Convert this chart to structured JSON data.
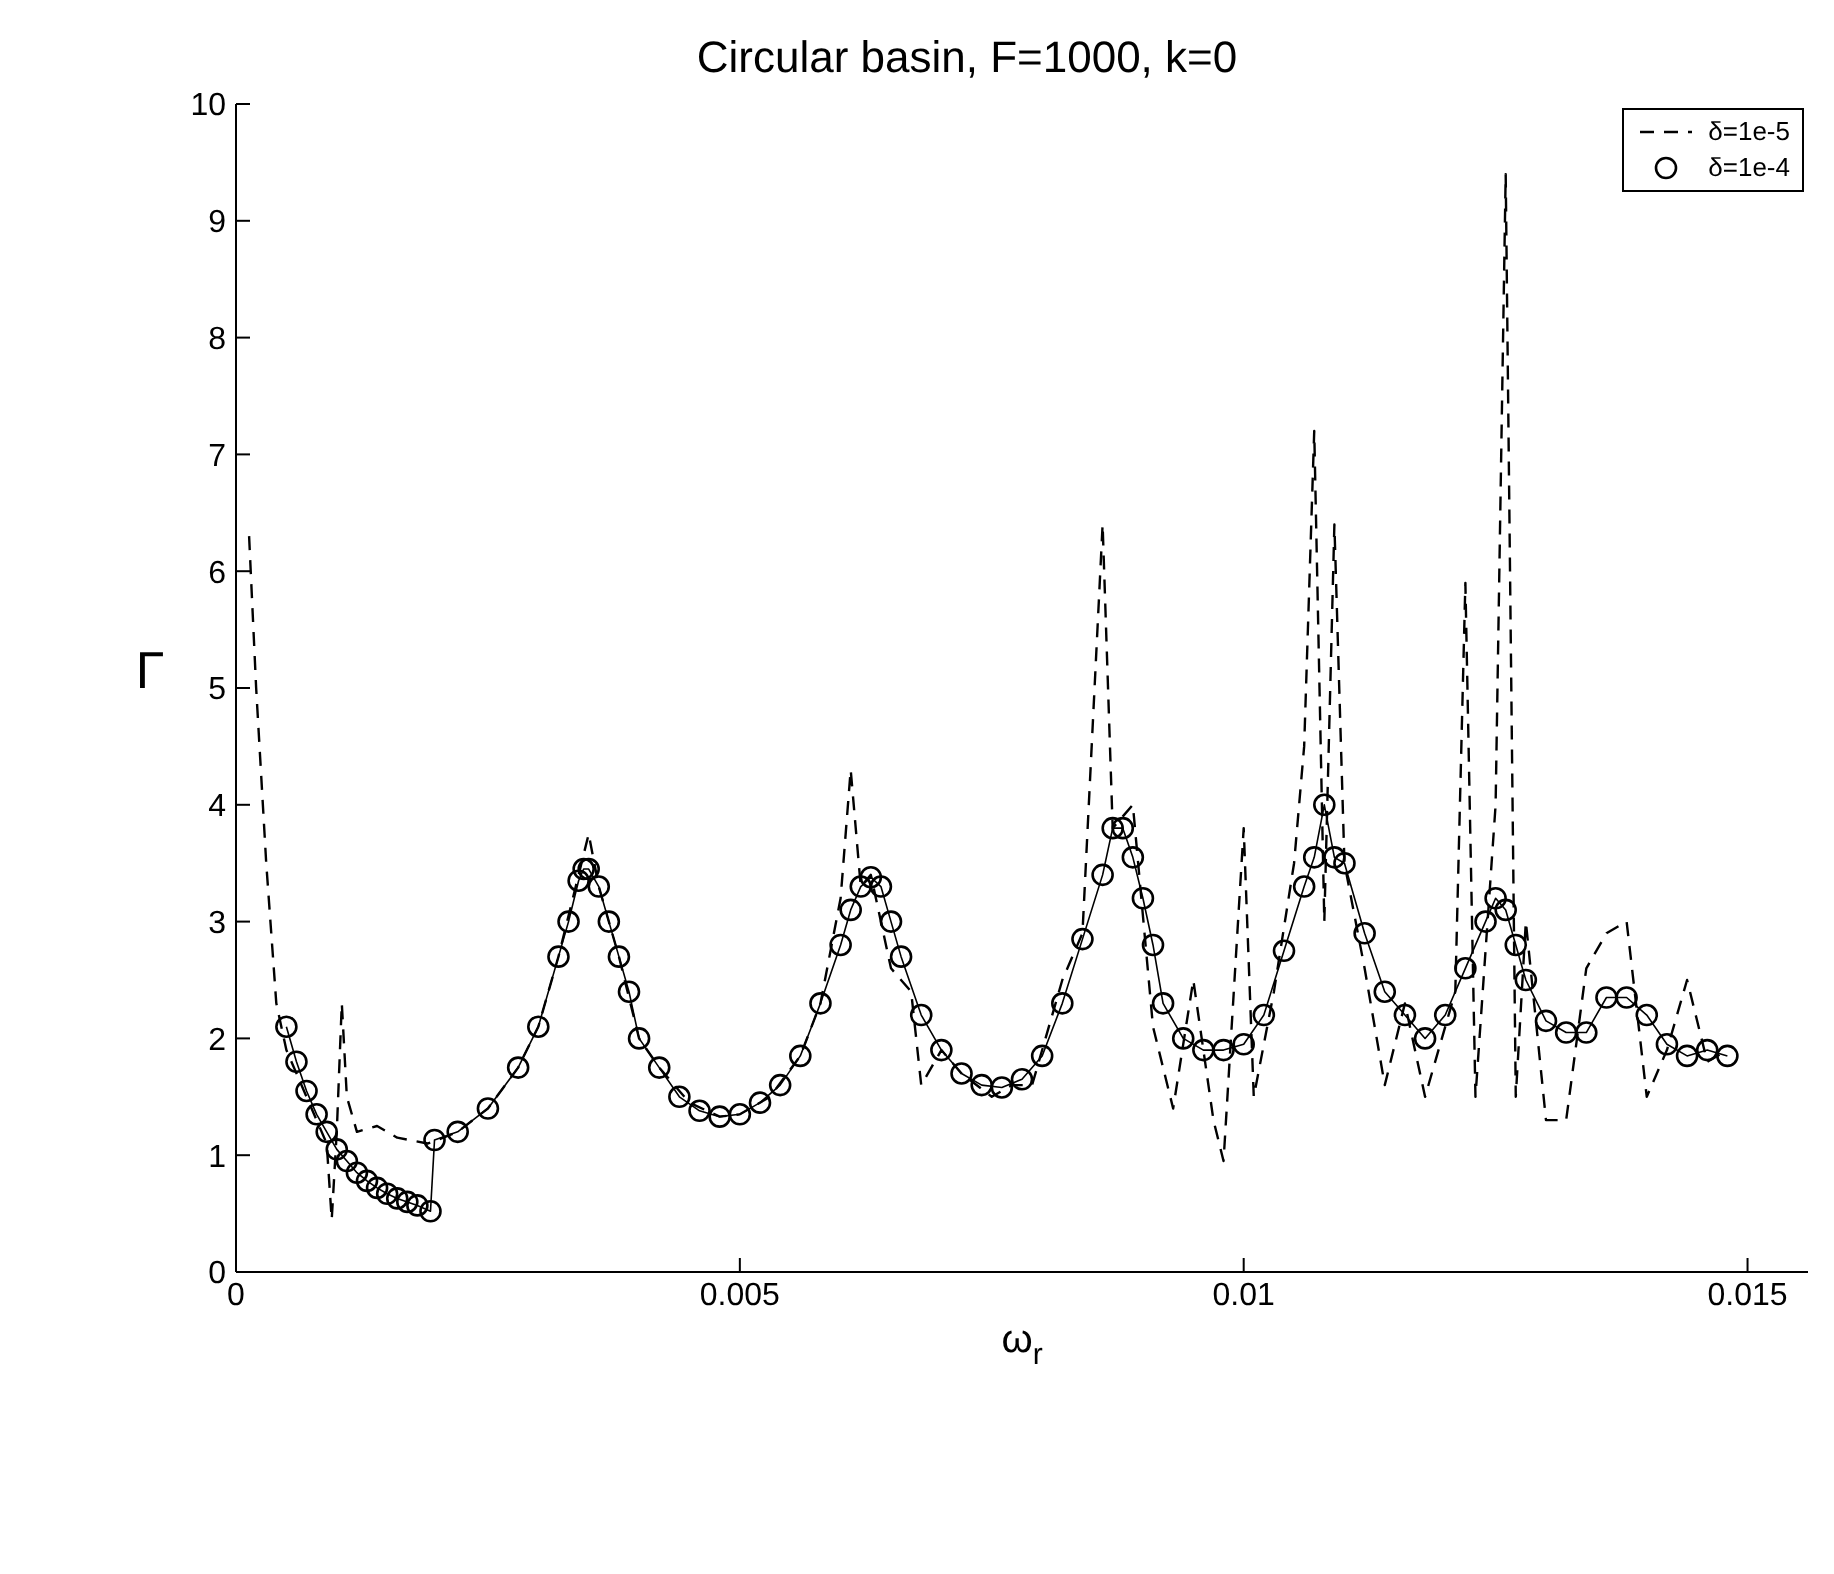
{
  "chart_data": {
    "type": "line",
    "title": "Circular basin, F=1000, k=0",
    "xlabel": "ω$_{r}$",
    "ylabel": "Γ",
    "xlim": [
      0,
      0.0156
    ],
    "xticks": [
      0,
      0.005,
      0.01,
      0.015
    ],
    "ylim": [
      0,
      10
    ],
    "yticks": [
      0,
      1,
      2,
      3,
      4,
      5,
      6,
      7,
      8,
      9,
      10
    ],
    "grid": false,
    "legend": "top right",
    "series": [
      {
        "name": "δ=1e-5",
        "color": "#000000",
        "line_style": "dashed",
        "marker": "none",
        "x": [
          0.00013,
          0.0002,
          0.0003,
          0.0004,
          0.0005,
          0.0007,
          0.0009,
          0.00095,
          0.001,
          0.00105,
          0.0011,
          0.0012,
          0.0014,
          0.0016,
          0.0019,
          0.002,
          0.0022,
          0.0025,
          0.0028,
          0.003,
          0.0032,
          0.0034,
          0.0035,
          0.0036,
          0.0038,
          0.004,
          0.0042,
          0.0045,
          0.0048,
          0.005,
          0.0053,
          0.0056,
          0.0058,
          0.006,
          0.0061,
          0.0062,
          0.0063,
          0.0065,
          0.0067,
          0.0068,
          0.007,
          0.0072,
          0.0075,
          0.0077,
          0.0079,
          0.0082,
          0.0084,
          0.0086,
          0.0087,
          0.0089,
          0.0091,
          0.0093,
          0.0095,
          0.0097,
          0.0098,
          0.01,
          0.0101,
          0.0103,
          0.0105,
          0.0106,
          0.0107,
          0.0108,
          0.0109,
          0.011,
          0.0112,
          0.0114,
          0.0116,
          0.0118,
          0.0121,
          0.0122,
          0.0123,
          0.0125,
          0.0126,
          0.0127,
          0.0128,
          0.013,
          0.0132,
          0.0134,
          0.0136,
          0.0138,
          0.014,
          0.0142,
          0.0144,
          0.0146,
          0.0148
        ],
        "values": [
          6.3,
          5.0,
          3.5,
          2.3,
          1.9,
          1.5,
          1.1,
          0.45,
          1.2,
          2.3,
          1.5,
          1.2,
          1.25,
          1.15,
          1.1,
          1.13,
          1.2,
          1.4,
          1.75,
          2.1,
          2.7,
          3.4,
          3.75,
          3.3,
          2.7,
          2.0,
          1.75,
          1.45,
          1.33,
          1.35,
          1.5,
          1.85,
          2.3,
          3.2,
          4.3,
          3.3,
          3.4,
          2.6,
          2.4,
          1.6,
          1.9,
          1.7,
          1.5,
          1.6,
          1.6,
          2.5,
          2.9,
          6.4,
          3.8,
          4.0,
          2.1,
          1.4,
          2.5,
          1.3,
          0.95,
          3.8,
          1.5,
          2.4,
          3.5,
          4.5,
          7.2,
          3.0,
          6.4,
          3.5,
          2.6,
          1.6,
          2.3,
          1.5,
          2.4,
          5.9,
          1.5,
          4.0,
          9.4,
          1.5,
          3.0,
          1.3,
          1.3,
          2.6,
          2.9,
          3.0,
          1.5,
          1.9,
          2.5,
          1.8,
          1.9
        ]
      },
      {
        "name": "δ=1e-4",
        "color": "#000000",
        "line_style": "solid",
        "marker": "circle",
        "x": [
          0.0005,
          0.0006,
          0.0007,
          0.0008,
          0.0009,
          0.001,
          0.0011,
          0.0012,
          0.0013,
          0.0014,
          0.0015,
          0.0016,
          0.0017,
          0.0018,
          0.00193,
          0.00197,
          0.0022,
          0.0025,
          0.0028,
          0.003,
          0.0032,
          0.0033,
          0.0034,
          0.00345,
          0.0035,
          0.0036,
          0.0037,
          0.0038,
          0.0039,
          0.004,
          0.0042,
          0.0044,
          0.0046,
          0.0048,
          0.005,
          0.0052,
          0.0054,
          0.0056,
          0.0058,
          0.006,
          0.0061,
          0.0062,
          0.0063,
          0.0064,
          0.0065,
          0.0066,
          0.0068,
          0.007,
          0.0072,
          0.0074,
          0.0076,
          0.0078,
          0.008,
          0.0082,
          0.0084,
          0.0086,
          0.0087,
          0.0088,
          0.0089,
          0.009,
          0.0091,
          0.0092,
          0.0094,
          0.0096,
          0.0098,
          0.01,
          0.0102,
          0.0104,
          0.0106,
          0.0107,
          0.0108,
          0.0109,
          0.011,
          0.0112,
          0.0114,
          0.0116,
          0.0118,
          0.012,
          0.0122,
          0.0124,
          0.0125,
          0.0126,
          0.0127,
          0.0128,
          0.013,
          0.0132,
          0.0134,
          0.0136,
          0.0138,
          0.014,
          0.0142,
          0.0144,
          0.0146,
          0.0148
        ],
        "values": [
          2.1,
          1.8,
          1.55,
          1.35,
          1.2,
          1.05,
          0.95,
          0.85,
          0.78,
          0.72,
          0.67,
          0.63,
          0.6,
          0.57,
          0.52,
          1.13,
          1.2,
          1.4,
          1.75,
          2.1,
          2.7,
          3.0,
          3.35,
          3.45,
          3.45,
          3.3,
          3.0,
          2.7,
          2.4,
          2.0,
          1.75,
          1.5,
          1.38,
          1.33,
          1.35,
          1.45,
          1.6,
          1.85,
          2.3,
          2.8,
          3.1,
          3.3,
          3.38,
          3.3,
          3.0,
          2.7,
          2.2,
          1.9,
          1.7,
          1.6,
          1.58,
          1.65,
          1.85,
          2.3,
          2.85,
          3.4,
          3.8,
          3.8,
          3.55,
          3.2,
          2.8,
          2.3,
          2.0,
          1.9,
          1.9,
          1.95,
          2.2,
          2.75,
          3.3,
          3.55,
          4.0,
          3.55,
          3.5,
          2.9,
          2.4,
          2.2,
          2.0,
          2.2,
          2.6,
          3.0,
          3.2,
          3.1,
          2.8,
          2.5,
          2.15,
          2.05,
          2.05,
          2.35,
          2.35,
          2.2,
          1.95,
          1.85,
          1.9,
          1.85
        ]
      }
    ]
  }
}
